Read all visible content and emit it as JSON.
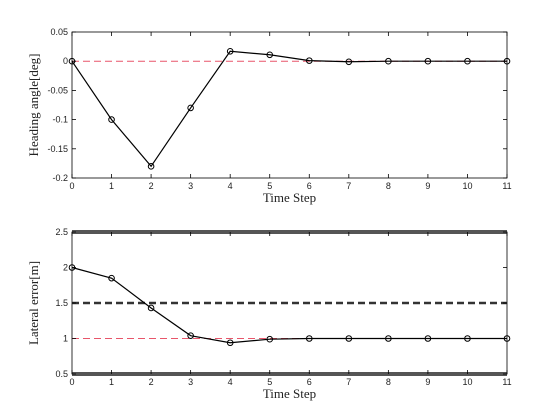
{
  "chart_data": [
    {
      "type": "line",
      "x_label": "Time Step",
      "y_label": "Heading angle[deg]",
      "x": [
        0,
        1,
        2,
        3,
        4,
        5,
        6,
        7,
        8,
        9,
        10,
        11
      ],
      "values": [
        0,
        -0.1,
        -0.18,
        -0.08,
        0.017,
        0.011,
        0.001,
        -0.001,
        0,
        0,
        0,
        0
      ],
      "color": "#000000",
      "xlim": [
        0,
        11
      ],
      "xticks": [
        0,
        1,
        2,
        3,
        4,
        5,
        6,
        7,
        8,
        9,
        10,
        11
      ],
      "ylim": [
        -0.2,
        0.05
      ],
      "yticks": [
        -0.2,
        -0.15,
        -0.1,
        -0.05,
        0,
        0.05
      ],
      "reference_lines": [
        {
          "value": 0,
          "color": "#e8556a",
          "style": "dashed",
          "width": 1
        }
      ]
    },
    {
      "type": "line",
      "x_label": "Time Step",
      "y_label": "Lateral error[m]",
      "x": [
        0,
        1,
        2,
        3,
        4,
        5,
        6,
        7,
        8,
        9,
        10,
        11
      ],
      "values": [
        2,
        1.85,
        1.43,
        1.04,
        0.94,
        0.99,
        1.0,
        1.0,
        1.0,
        1.0,
        1.0,
        1.0
      ],
      "color": "#000000",
      "xlim": [
        0,
        11
      ],
      "xticks": [
        0,
        1,
        2,
        3,
        4,
        5,
        6,
        7,
        8,
        9,
        10,
        11
      ],
      "ylim": [
        0.5,
        2.5
      ],
      "yticks": [
        0.5,
        1,
        1.5,
        2,
        2.5
      ],
      "reference_lines": [
        {
          "value": 1,
          "color": "#e8556a",
          "style": "dashed",
          "width": 1
        },
        {
          "value": 1.5,
          "color": "#333333",
          "style": "dashed",
          "width": 2.5
        },
        {
          "value": 2.5,
          "color": "#555555",
          "style": "solid",
          "width": 4
        },
        {
          "value": 0.5,
          "color": "#555555",
          "style": "solid",
          "width": 4
        }
      ]
    }
  ]
}
